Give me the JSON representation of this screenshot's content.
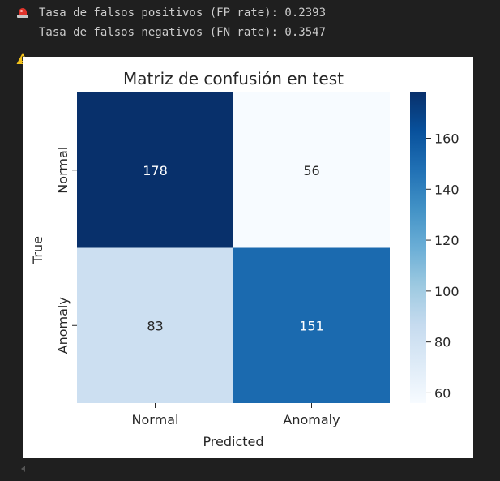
{
  "output": {
    "lines": [
      {
        "icon": "siren-icon",
        "text": "Tasa de falsos positivos (FP rate): 0.2393"
      },
      {
        "icon": "warning-icon",
        "text": "Tasa de falsos negativos (FN rate): 0.3547"
      }
    ]
  },
  "chart_data": {
    "type": "heatmap",
    "title": "Matriz de confusión en test",
    "xlabel": "Predicted",
    "ylabel": "True",
    "x_categories": [
      "Normal",
      "Anomaly"
    ],
    "y_categories": [
      "Normal",
      "Anomaly"
    ],
    "values": [
      [
        178,
        56
      ],
      [
        83,
        151
      ]
    ],
    "colormap": "Blues",
    "colorbar": {
      "range": [
        56,
        178
      ],
      "ticks": [
        60,
        80,
        100,
        120,
        140,
        160
      ],
      "low_color": "#f7fbff",
      "high_color": "#08306b"
    },
    "cell_text_colors": {
      "light": "#ffffff",
      "dark": "#262626"
    }
  }
}
